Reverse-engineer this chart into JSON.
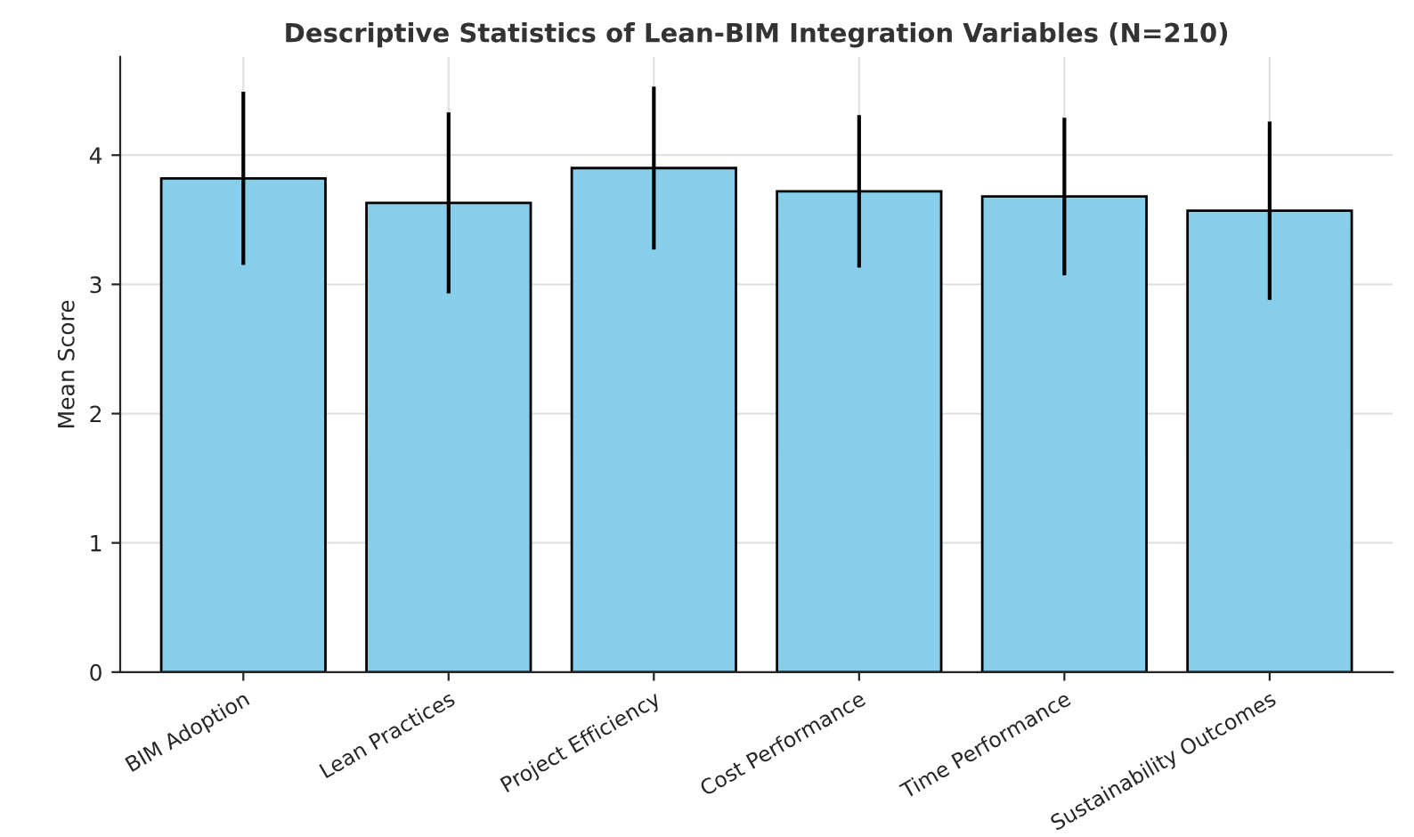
{
  "chart_data": {
    "type": "bar",
    "title": "Descriptive Statistics of Lean-BIM Integration Variables (N=210)",
    "ylabel": "Mean Score",
    "categories": [
      "BIM Adoption",
      "Lean Practices",
      "Project Efficiency",
      "Cost Performance",
      "Time Performance",
      "Sustainability Outcomes"
    ],
    "values": [
      3.82,
      3.63,
      3.9,
      3.72,
      3.68,
      3.57
    ],
    "errors": [
      0.67,
      0.7,
      0.63,
      0.59,
      0.61,
      0.69
    ],
    "color": "#87ceeb",
    "ylim": [
      0,
      4.76
    ],
    "yticks": [
      0,
      1,
      2,
      3,
      4
    ],
    "grid": true
  }
}
